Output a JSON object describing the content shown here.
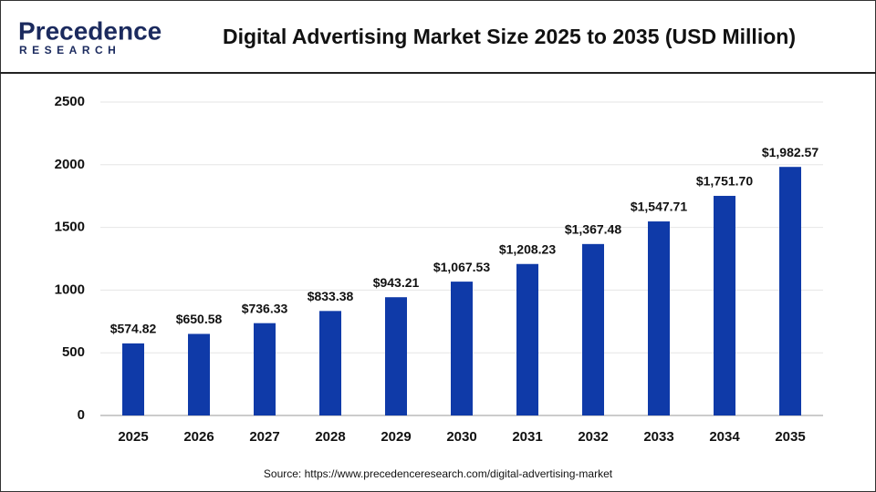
{
  "logo": {
    "name": "Precedence",
    "subtitle": "RESEARCH"
  },
  "chart_data": {
    "type": "bar",
    "title": "Digital Advertising Market Size 2025 to 2035 (USD Million)",
    "source": "Source: https://www.precedenceresearch.com/digital-advertising-market",
    "categories": [
      "2025",
      "2026",
      "2027",
      "2028",
      "2029",
      "2030",
      "2031",
      "2032",
      "2033",
      "2034",
      "2035"
    ],
    "values": [
      574.82,
      650.58,
      736.33,
      833.38,
      943.21,
      1067.53,
      1208.23,
      1367.48,
      1547.71,
      1751.7,
      1982.57
    ],
    "value_labels": [
      "$574.82",
      "$650.58",
      "$736.33",
      "$833.38",
      "$943.21",
      "$1,067.53",
      "$1,208.23",
      "$1,367.48",
      "$1,547.71",
      "$1,751.70",
      "$1,982.57"
    ],
    "color": "#0f3aa8",
    "ylim": [
      0,
      2500
    ],
    "yticks": [
      0,
      500,
      1000,
      1500,
      2000,
      2500
    ],
    "grid": true
  }
}
